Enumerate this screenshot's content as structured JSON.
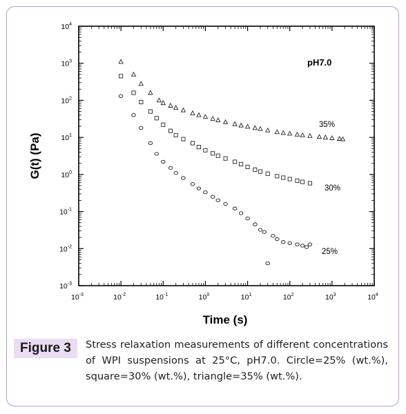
{
  "figure": {
    "label": "Figure 3",
    "caption": "Stress relaxation measurements of different concentrations of WPI suspensions at 25°C, pH7.0. Circle=25% (wt.%), square=30% (wt.%), triangle=35% (wt.%)."
  },
  "chart_data": {
    "type": "scatter",
    "xlabel": "Time (s)",
    "ylabel": "G(t) (Pa)",
    "xscale": "log",
    "yscale": "log",
    "xlim": [
      0.001,
      10000
    ],
    "ylim": [
      0.001,
      10000
    ],
    "x_ticks": [
      "10-3",
      "10-2",
      "10-1",
      "100",
      "101",
      "102",
      "103",
      "104"
    ],
    "y_ticks": [
      "10-3",
      "10-2",
      "10-1",
      "100",
      "101",
      "102",
      "103",
      "104"
    ],
    "annotation": "pH7.0",
    "grid": false,
    "series": [
      {
        "name": "35%",
        "marker": "triangle",
        "x": [
          0.01,
          0.02,
          0.03,
          0.05,
          0.08,
          0.1,
          0.15,
          0.2,
          0.3,
          0.5,
          0.7,
          1,
          1.5,
          2,
          3,
          5,
          7,
          10,
          15,
          20,
          30,
          50,
          70,
          100,
          150,
          200,
          300,
          500,
          700,
          1000,
          1500,
          1800
        ],
        "y": [
          1100,
          500,
          280,
          160,
          100,
          85,
          72,
          63,
          54,
          45,
          40,
          36,
          32,
          29,
          26,
          23,
          21,
          19.5,
          18,
          17,
          15.5,
          14,
          13.3,
          12.7,
          12,
          11.5,
          11,
          10.4,
          10,
          9.6,
          9.2,
          9
        ]
      },
      {
        "name": "30%",
        "marker": "square",
        "x": [
          0.01,
          0.02,
          0.03,
          0.05,
          0.07,
          0.1,
          0.15,
          0.2,
          0.3,
          0.5,
          0.7,
          1,
          1.5,
          2,
          3,
          5,
          7,
          10,
          15,
          20,
          30,
          50,
          70,
          100,
          150,
          200,
          300
        ],
        "y": [
          450,
          160,
          90,
          50,
          33,
          22,
          15,
          11.5,
          9,
          7,
          5.5,
          4.5,
          3.7,
          3.2,
          2.7,
          2.2,
          1.9,
          1.6,
          1.35,
          1.2,
          1.05,
          0.9,
          0.82,
          0.75,
          0.68,
          0.63,
          0.58
        ]
      },
      {
        "name": "25%",
        "marker": "circle",
        "x": [
          0.01,
          0.02,
          0.03,
          0.05,
          0.07,
          0.1,
          0.15,
          0.2,
          0.3,
          0.5,
          0.7,
          1,
          1.5,
          2,
          3,
          5,
          7,
          10,
          15,
          20,
          25,
          30,
          40,
          50,
          70,
          100,
          150,
          200,
          250,
          300
        ],
        "y": [
          130,
          40,
          18,
          7,
          3.6,
          2.2,
          1.5,
          1.1,
          0.8,
          0.55,
          0.42,
          0.33,
          0.25,
          0.2,
          0.16,
          0.12,
          0.09,
          0.065,
          0.045,
          0.032,
          0.028,
          0.004,
          0.022,
          0.018,
          0.015,
          0.014,
          0.013,
          0.012,
          0.011,
          0.013
        ]
      }
    ]
  }
}
